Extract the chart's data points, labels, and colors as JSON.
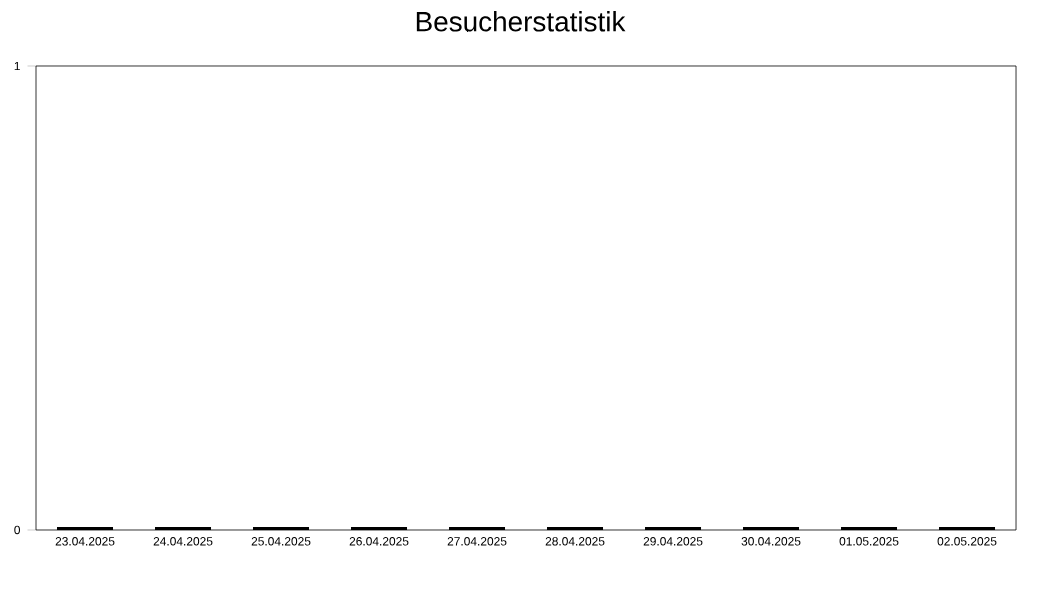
{
  "chart_data": {
    "type": "bar",
    "title": "Besucherstatistik",
    "categories": [
      "23.04.2025",
      "24.04.2025",
      "25.04.2025",
      "26.04.2025",
      "27.04.2025",
      "28.04.2025",
      "29.04.2025",
      "30.04.2025",
      "01.05.2025",
      "02.05.2025"
    ],
    "values": [
      0,
      0,
      0,
      0,
      0,
      0,
      0,
      0,
      0,
      0
    ],
    "color": "#000000",
    "ylim": [
      0,
      1
    ],
    "yticks": [
      0,
      1
    ],
    "grid": false
  }
}
